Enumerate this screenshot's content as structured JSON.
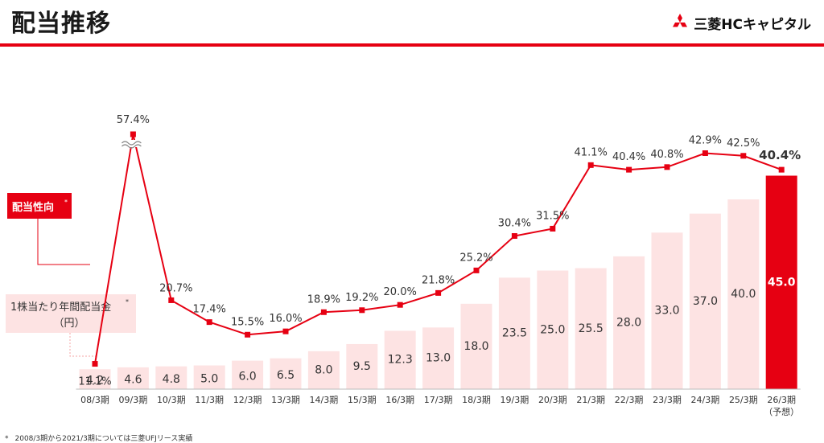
{
  "page": {
    "title": "配当推移",
    "company": "三菱HCキャピタル",
    "footnote_mark": "*",
    "footnote": "2008/3期から2021/3期については三菱UFJリース実績"
  },
  "colors": {
    "accent": "#e60012",
    "bar": "#fde3e3",
    "bar_highlight": "#e60012",
    "line": "#e60012",
    "label_box": "#fde3e3"
  },
  "chart_data": {
    "type": "bar+line",
    "categories": [
      "08/3期",
      "09/3期",
      "10/3期",
      "11/3期",
      "12/3期",
      "13/3期",
      "14/3期",
      "15/3期",
      "16/3期",
      "17/3期",
      "18/3期",
      "19/3期",
      "20/3期",
      "21/3期",
      "22/3期",
      "23/3期",
      "24/3期",
      "25/3期",
      "26/3期"
    ],
    "forecast_note": "（予想）",
    "forecast_index": 18,
    "series": [
      {
        "name": "1株当たり年間配当金",
        "name_mark": "*",
        "unit_label": "（円）",
        "type": "bar",
        "values": [
          4.2,
          4.6,
          4.8,
          5.0,
          6.0,
          6.5,
          8.0,
          9.5,
          12.3,
          13.0,
          18.0,
          23.5,
          25.0,
          25.5,
          28.0,
          33.0,
          37.0,
          40.0,
          45.0
        ],
        "labels": [
          "4.2",
          "4.6",
          "4.8",
          "5.0",
          "6.0",
          "6.5",
          "8.0",
          "9.5",
          "12.3",
          "13.0",
          "18.0",
          "23.5",
          "25.0",
          "25.5",
          "28.0",
          "33.0",
          "37.0",
          "40.0",
          "45.0"
        ]
      },
      {
        "name": "配当性向",
        "name_mark": "*",
        "type": "line",
        "values": [
          11.1,
          57.4,
          20.7,
          17.4,
          15.5,
          16.0,
          18.9,
          19.2,
          20.0,
          21.8,
          25.2,
          30.4,
          31.5,
          41.1,
          40.4,
          40.8,
          42.9,
          42.5,
          40.4
        ],
        "labels": [
          "11.1%",
          "57.4%",
          "20.7%",
          "17.4%",
          "15.5%",
          "16.0%",
          "18.9%",
          "19.2%",
          "20.0%",
          "21.8%",
          "25.2%",
          "30.4%",
          "31.5%",
          "41.1%",
          "40.4%",
          "40.8%",
          "42.9%",
          "42.5%",
          "40.4%"
        ],
        "axis_break": true
      }
    ]
  }
}
